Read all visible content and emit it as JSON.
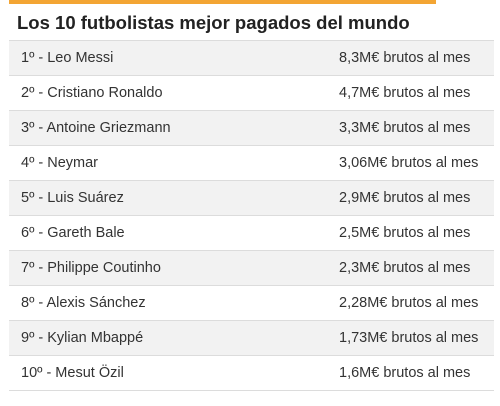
{
  "header": {
    "title": "Los 10 futbolistas mejor pagados del mundo",
    "accent_color": "#f3a533"
  },
  "rows": [
    {
      "name": "1º - Leo Messi",
      "salary": "8,3M€ brutos al mes"
    },
    {
      "name": "2º - Cristiano Ronaldo",
      "salary": "4,7M€ brutos al mes"
    },
    {
      "name": "3º - Antoine Griezmann",
      "salary": "3,3M€ brutos al mes"
    },
    {
      "name": "4º - Neymar",
      "salary": "3,06M€ brutos al mes"
    },
    {
      "name": "5º - Luis Suárez",
      "salary": "2,9M€ brutos al mes"
    },
    {
      "name": "6º - Gareth Bale",
      "salary": "2,5M€ brutos al mes"
    },
    {
      "name": "7º - Philippe Coutinho",
      "salary": "2,3M€ brutos al mes"
    },
    {
      "name": "8º - Alexis Sánchez",
      "salary": "2,28M€ brutos al mes"
    },
    {
      "name": "9º - Kylian Mbappé",
      "salary": "1,73M€ brutos al mes"
    },
    {
      "name": "10º - Mesut Özil",
      "salary": "1,6M€ brutos al mes"
    }
  ]
}
